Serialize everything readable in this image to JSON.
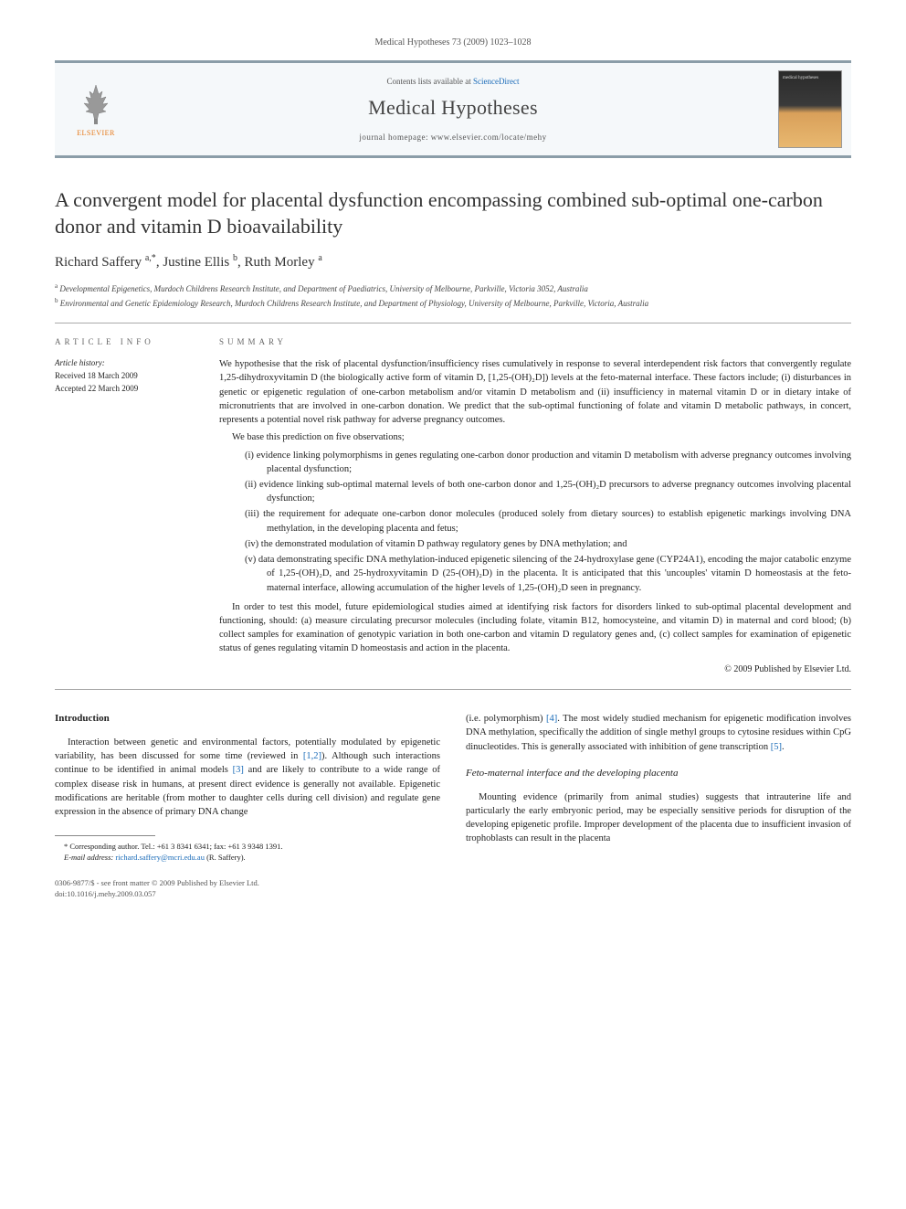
{
  "header": {
    "citation": "Medical Hypotheses 73 (2009) 1023–1028",
    "contents_prefix": "Contents lists available at ",
    "contents_link": "ScienceDirect",
    "journal_name": "Medical Hypotheses",
    "homepage_prefix": "journal homepage: ",
    "homepage_url": "www.elsevier.com/locate/mehy",
    "publisher_label": "ELSEVIER",
    "cover_label": "medical hypotheses"
  },
  "article": {
    "title": "A convergent model for placental dysfunction encompassing combined sub-optimal one-carbon donor and vitamin D bioavailability",
    "authors_html": "Richard Saffery <sup>a,*</sup>, Justine Ellis <sup>b</sup>, Ruth Morley <sup>a</sup>",
    "affiliations": [
      {
        "sup": "a",
        "text": "Developmental Epigenetics, Murdoch Childrens Research Institute, and Department of Paediatrics, University of Melbourne, Parkville, Victoria 3052, Australia"
      },
      {
        "sup": "b",
        "text": "Environmental and Genetic Epidemiology Research, Murdoch Childrens Research Institute, and Department of Physiology, University of Melbourne, Parkville, Victoria, Australia"
      }
    ]
  },
  "info": {
    "heading": "ARTICLE INFO",
    "history_label": "Article history:",
    "received": "Received 18 March 2009",
    "accepted": "Accepted 22 March 2009"
  },
  "summary": {
    "heading": "SUMMARY",
    "p1": "We hypothesise that the risk of placental dysfunction/insufficiency rises cumulatively in response to several interdependent risk factors that convergently regulate 1,25-dihydroxyvitamin D (the biologically active form of vitamin D, [1,25-(OH)₂D]) levels at the feto-maternal interface. These factors include; (i) disturbances in genetic or epigenetic regulation of one-carbon metabolism and/or vitamin D metabolism and (ii) insufficiency in maternal vitamin D or in dietary intake of micronutrients that are involved in one-carbon donation. We predict that the sub-optimal functioning of folate and vitamin D metabolic pathways, in concert, represents a potential novel risk pathway for adverse pregnancy outcomes.",
    "p2": "We base this prediction on five observations;",
    "items": [
      {
        "n": "(i)",
        "t": "evidence linking polymorphisms in genes regulating one-carbon donor production and vitamin D metabolism with adverse pregnancy outcomes involving placental dysfunction;"
      },
      {
        "n": "(ii)",
        "t": "evidence linking sub-optimal maternal levels of both one-carbon donor and 1,25-(OH)₂D precursors to adverse pregnancy outcomes involving placental dysfunction;"
      },
      {
        "n": "(iii)",
        "t": "the requirement for adequate one-carbon donor molecules (produced solely from dietary sources) to establish epigenetic markings involving DNA methylation, in the developing placenta and fetus;"
      },
      {
        "n": "(iv)",
        "t": "the demonstrated modulation of vitamin D pathway regulatory genes by DNA methylation; and"
      },
      {
        "n": "(v)",
        "t": "data demonstrating specific DNA methylation-induced epigenetic silencing of the 24-hydroxylase gene (CYP24A1), encoding the major catabolic enzyme of 1,25-(OH)₂D, and 25-hydroxyvitamin D (25-(OH)₂D) in the placenta. It is anticipated that this 'uncouples' vitamin D homeostasis at the feto-maternal interface, allowing accumulation of the higher levels of 1,25-(OH)₂D seen in pregnancy."
      }
    ],
    "p3": "In order to test this model, future epidemiological studies aimed at identifying risk factors for disorders linked to sub-optimal placental development and functioning, should: (a) measure circulating precursor molecules (including folate, vitamin B12, homocysteine, and vitamin D) in maternal and cord blood; (b) collect samples for examination of genotypic variation in both one-carbon and vitamin D regulatory genes and, (c) collect samples for examination of epigenetic status of genes regulating vitamin D homeostasis and action in the placenta.",
    "copyright": "© 2009 Published by Elsevier Ltd."
  },
  "body": {
    "intro_heading": "Introduction",
    "intro_p1_pre": "Interaction between genetic and environmental factors, potentially modulated by epigenetic variability, has been discussed for some time (reviewed in ",
    "intro_ref1": "[1,2]",
    "intro_p1_mid": "). Although such interactions continue to be identified in animal models ",
    "intro_ref2": "[3]",
    "intro_p1_post": " and are likely to contribute to a wide range of complex disease risk in humans, at present direct evidence is generally not available. Epigenetic modifications are heritable (from mother to daughter cells during cell division) and regulate gene expression in the absence of primary DNA change",
    "col2_p1_pre": "(i.e. polymorphism) ",
    "col2_ref1": "[4]",
    "col2_p1_mid": ". The most widely studied mechanism for epigenetic modification involves DNA methylation, specifically the addition of single methyl groups to cytosine residues within CpG dinucleotides. This is generally associated with inhibition of gene transcription ",
    "col2_ref2": "[5]",
    "col2_p1_post": ".",
    "subsection": "Feto-maternal interface and the developing placenta",
    "col2_p2": "Mounting evidence (primarily from animal studies) suggests that intrauterine life and particularly the early embryonic period, may be especially sensitive periods for disruption of the developing epigenetic profile. Improper development of the placenta due to insufficient invasion of trophoblasts can result in the placenta"
  },
  "footnote": {
    "corr": "* Corresponding author. Tel.: +61 3 8341 6341; fax: +61 3 9348 1391.",
    "email_label": "E-mail address: ",
    "email": "richard.saffery@mcri.edu.au",
    "email_who": " (R. Saffery)."
  },
  "bottom": {
    "issn": "0306-9877/$ - see front matter © 2009 Published by Elsevier Ltd.",
    "doi": "doi:10.1016/j.mehy.2009.03.057"
  },
  "colors": {
    "header_border": "#8b9da8",
    "header_bg": "#f5f8fa",
    "link": "#1a6bb8",
    "elsevier": "#e67817"
  }
}
